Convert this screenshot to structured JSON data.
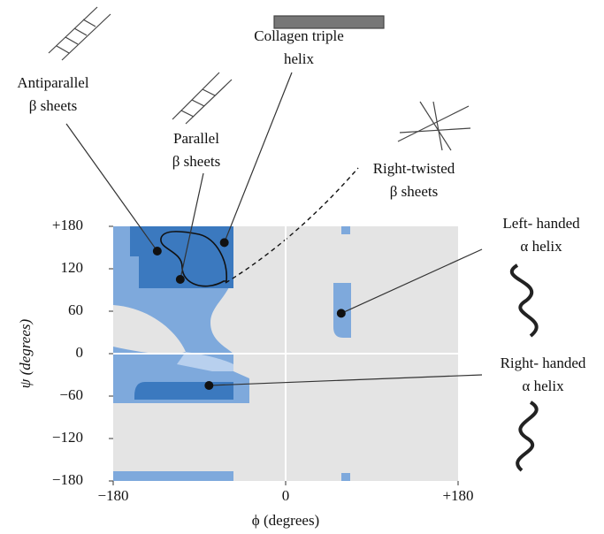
{
  "chart_data": {
    "type": "scatter",
    "x_label": "ϕ (degrees)",
    "y_label": "ψ (degrees)",
    "xlim": [
      -180,
      180
    ],
    "ylim": [
      -180,
      180
    ],
    "xticks": [
      {
        "value": -180,
        "label": "−180"
      },
      0,
      {
        "value": 180,
        "label": "+180"
      }
    ],
    "yticks": [
      {
        "value": -180,
        "label": "−180"
      },
      {
        "value": -120,
        "label": "−120"
      },
      {
        "value": -60,
        "label": "−60"
      },
      0,
      60,
      120,
      {
        "value": 180,
        "label": "+180"
      }
    ],
    "annotations": [
      {
        "text": [
          "Antiparallel",
          "β sheets"
        ],
        "x": -134,
        "y": 145
      },
      {
        "text": [
          "Parallel",
          "β sheets"
        ],
        "x": -110,
        "y": 105
      },
      {
        "text": [
          "Collagen triple",
          "helix"
        ],
        "x": -64,
        "y": 157
      },
      {
        "text": [
          "Right-twisted",
          "β sheets"
        ]
      },
      {
        "text": [
          "Left- handed",
          "α helix"
        ],
        "x": 58,
        "y": 57
      },
      {
        "text": [
          "Right- handed",
          "α helix"
        ],
        "x": -80,
        "y": -45
      }
    ]
  }
}
